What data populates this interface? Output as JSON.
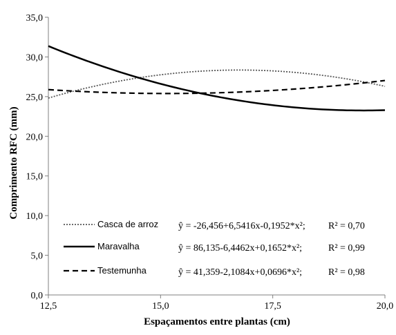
{
  "chart_data": {
    "type": "line",
    "xlabel": "Espaçamentos  entre plantas  (cm)",
    "ylabel": "Comprimento RFC (mm)",
    "xlim": [
      12.5,
      20.0
    ],
    "ylim": [
      0,
      35
    ],
    "x_ticks": [
      "12,5",
      "15,0",
      "17,5",
      "20,0"
    ],
    "y_ticks": [
      "0,0",
      "5,0",
      "10,0",
      "15,0",
      "20,0",
      "25,0",
      "30,0",
      "35,0"
    ],
    "grid": false,
    "legend_position": "bottom-left",
    "series": [
      {
        "name": "Casca de arroz",
        "style": "dotted",
        "equation": "ŷ = -26,456+6,5416x-0,1952*x²;",
        "r2": "R² = 0,70",
        "coefficients": [
          -26.456,
          6.5416,
          -0.1952
        ]
      },
      {
        "name": "Maravalha",
        "style": "solid",
        "equation": "ŷ = 86,135-6,4462x+0,1652*x²;",
        "r2": "R² = 0,99",
        "coefficients": [
          86.135,
          -6.4462,
          0.1652
        ]
      },
      {
        "name": "Testemunha",
        "style": "dashed",
        "equation": "ŷ = 41,359-2,1084x+0,0696*x²;",
        "r2": "R² = 0,98",
        "coefficients": [
          41.359,
          -2.1084,
          0.0696
        ]
      }
    ]
  }
}
